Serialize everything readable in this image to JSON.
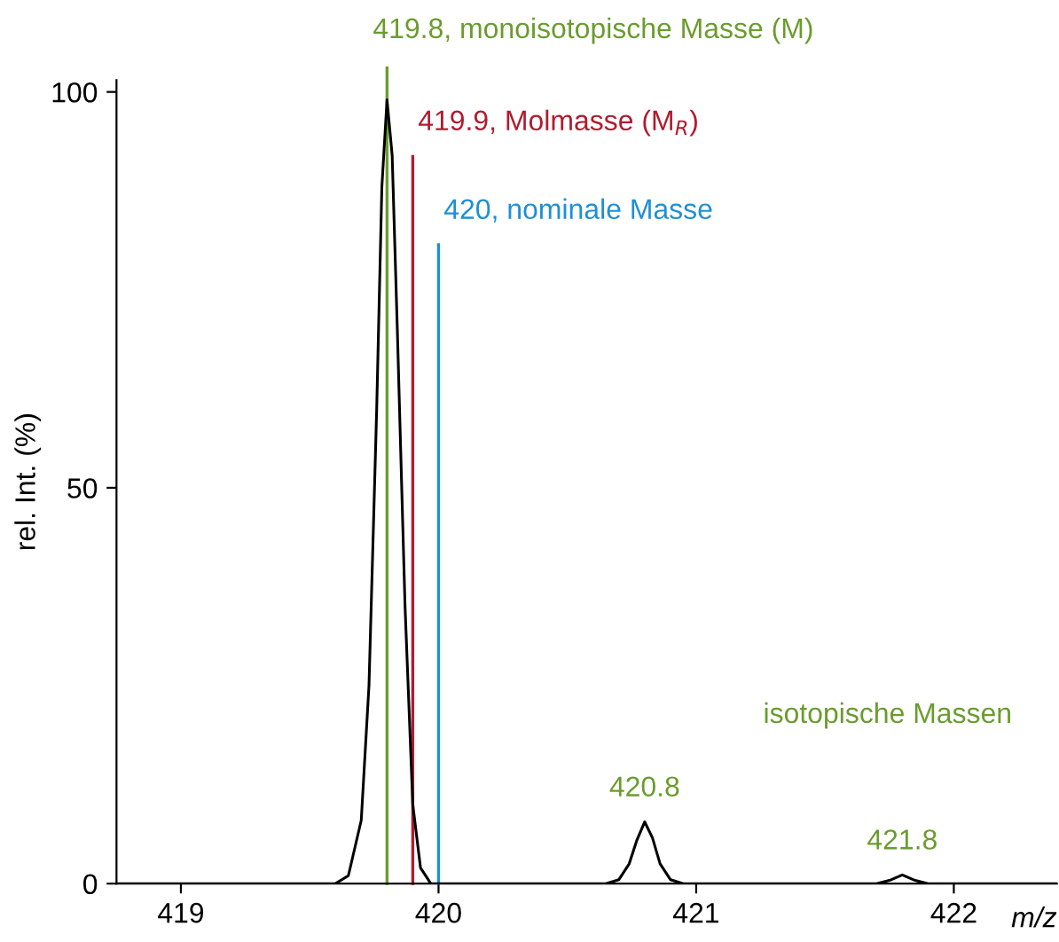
{
  "chart_data": {
    "type": "line",
    "xlabel": "m/z",
    "ylabel": "rel. Int. (%)",
    "x": [
      418.75,
      419.6,
      419.65,
      419.7,
      419.73,
      419.76,
      419.78,
      419.8,
      419.82,
      419.84,
      419.87,
      419.9,
      419.93,
      419.97,
      420.65,
      420.7,
      420.74,
      420.77,
      420.8,
      420.83,
      420.86,
      420.9,
      420.95,
      421.7,
      421.75,
      421.8,
      421.85,
      421.9,
      422.4
    ],
    "series": [
      {
        "color": "#000000",
        "values": [
          0,
          0,
          1,
          8,
          25,
          60,
          88,
          99,
          92,
          70,
          35,
          10,
          2,
          0,
          0,
          0.5,
          2.5,
          5.5,
          7.8,
          5.8,
          2.5,
          0.5,
          0,
          0,
          0.4,
          1.1,
          0.4,
          0,
          0
        ]
      }
    ],
    "xlim": [
      418.75,
      422.4
    ],
    "ylim": [
      0,
      101.5
    ],
    "xticks": [
      419,
      420,
      421,
      422
    ],
    "yticks": [
      0,
      50,
      100
    ],
    "ref_lines": [
      {
        "axis": "x",
        "value": 419.8,
        "label": "419.8, monoisotopische Masse (M)",
        "color": "#6a9c2c"
      },
      {
        "axis": "x",
        "value": 419.9,
        "label": "419.9, Molmasse (M$_{R}$)",
        "color": "#b01c2e"
      },
      {
        "axis": "x",
        "value": 420,
        "label": "420, nominale Masse",
        "color": "#1e8fd5"
      }
    ],
    "annotations": [
      "isotopische Massen",
      {
        "text": "420.8",
        "x": 420.8,
        "y": 7.8
      },
      {
        "text": "421.8",
        "x": 421.8,
        "y": 1.1
      }
    ],
    "grid": false,
    "marker": "none",
    "line_style": "solid"
  }
}
